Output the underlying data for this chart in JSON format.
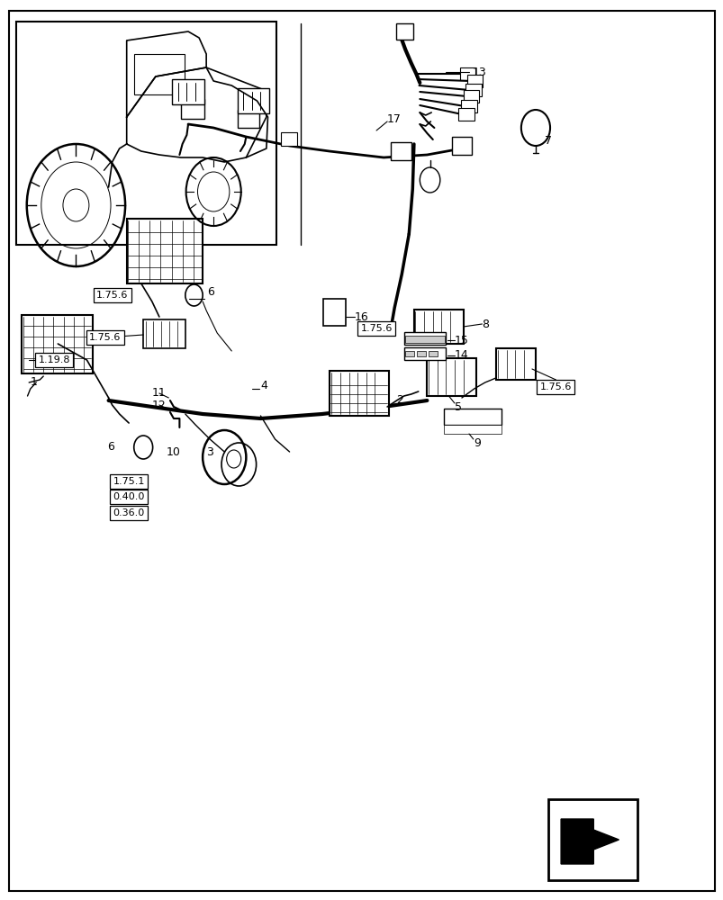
{
  "background_color": "#ffffff",
  "border_color": "#000000",
  "fig_width": 8.04,
  "fig_height": 10.0,
  "dpi": 100
}
